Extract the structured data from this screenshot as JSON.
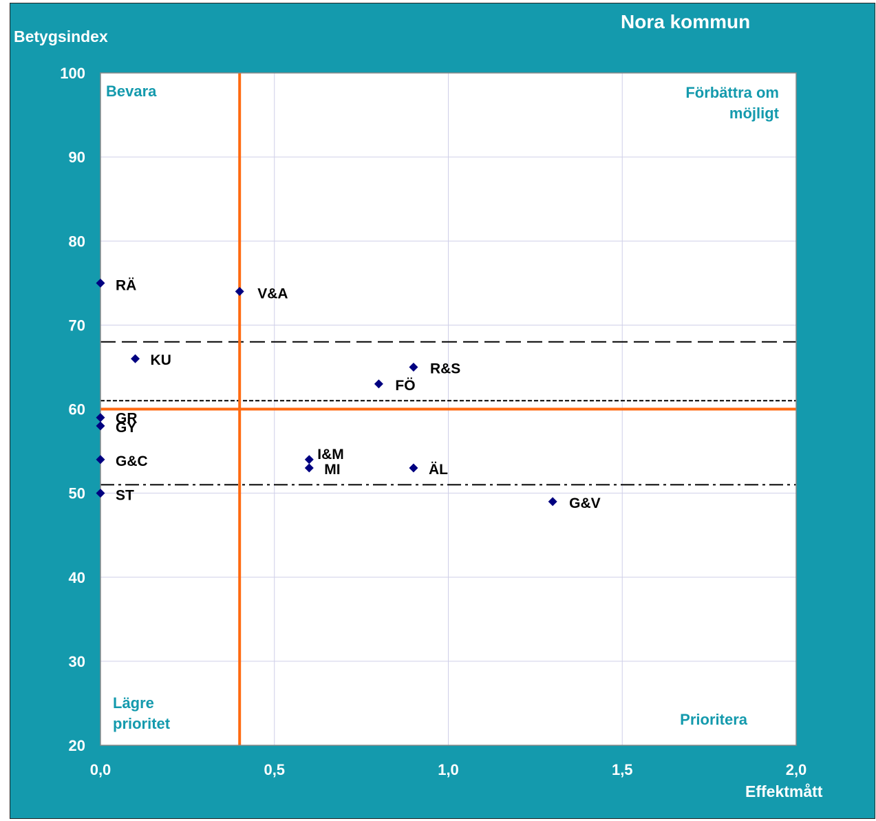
{
  "chart_data": {
    "type": "scatter",
    "title": "Nora kommun",
    "xlabel": "Effektmått",
    "ylabel": "Betygsindex",
    "xlim": [
      0,
      2
    ],
    "ylim": [
      20,
      100
    ],
    "x_ticks": [
      "0,0",
      "0,5",
      "1,0",
      "1,5",
      "2,0"
    ],
    "y_ticks": [
      "20",
      "30",
      "40",
      "50",
      "60",
      "70",
      "80",
      "90",
      "100"
    ],
    "grid": true,
    "points": [
      {
        "label": "RÄ",
        "x": 0.0,
        "y": 75
      },
      {
        "label": "V&A",
        "x": 0.4,
        "y": 74
      },
      {
        "label": "KU",
        "x": 0.1,
        "y": 66
      },
      {
        "label": "R&S",
        "x": 0.9,
        "y": 65
      },
      {
        "label": "FÖ",
        "x": 0.8,
        "y": 63
      },
      {
        "label": "GR",
        "x": 0.0,
        "y": 59
      },
      {
        "label": "GY",
        "x": 0.0,
        "y": 58
      },
      {
        "label": "G&C",
        "x": 0.0,
        "y": 54
      },
      {
        "label": "I&M",
        "x": 0.6,
        "y": 54
      },
      {
        "label": "MI",
        "x": 0.6,
        "y": 53
      },
      {
        "label": "ÄL",
        "x": 0.9,
        "y": 53
      },
      {
        "label": "ST",
        "x": 0.0,
        "y": 50
      },
      {
        "label": "G&V",
        "x": 1.3,
        "y": 49
      }
    ],
    "reference_lines": {
      "vertical_orange_x": 0.4,
      "horizontal_orange_y": 60,
      "dashed_long_y": 68,
      "dashed_short_y": 61,
      "dash_dot_y": 51
    },
    "quadrant_labels": {
      "top_left": "Bevara",
      "top_right": [
        "Förbättra om",
        "möjligt"
      ],
      "bottom_left": [
        "Lägre",
        "prioritet"
      ],
      "bottom_right": "Prioritera"
    },
    "colors": {
      "background": "#149aad",
      "plot_area": "#ffffff",
      "marker": "#000080",
      "reference_orange": "#ff6a10",
      "quadrant_text": "#149aad",
      "grid": "#cfcfe8"
    }
  }
}
